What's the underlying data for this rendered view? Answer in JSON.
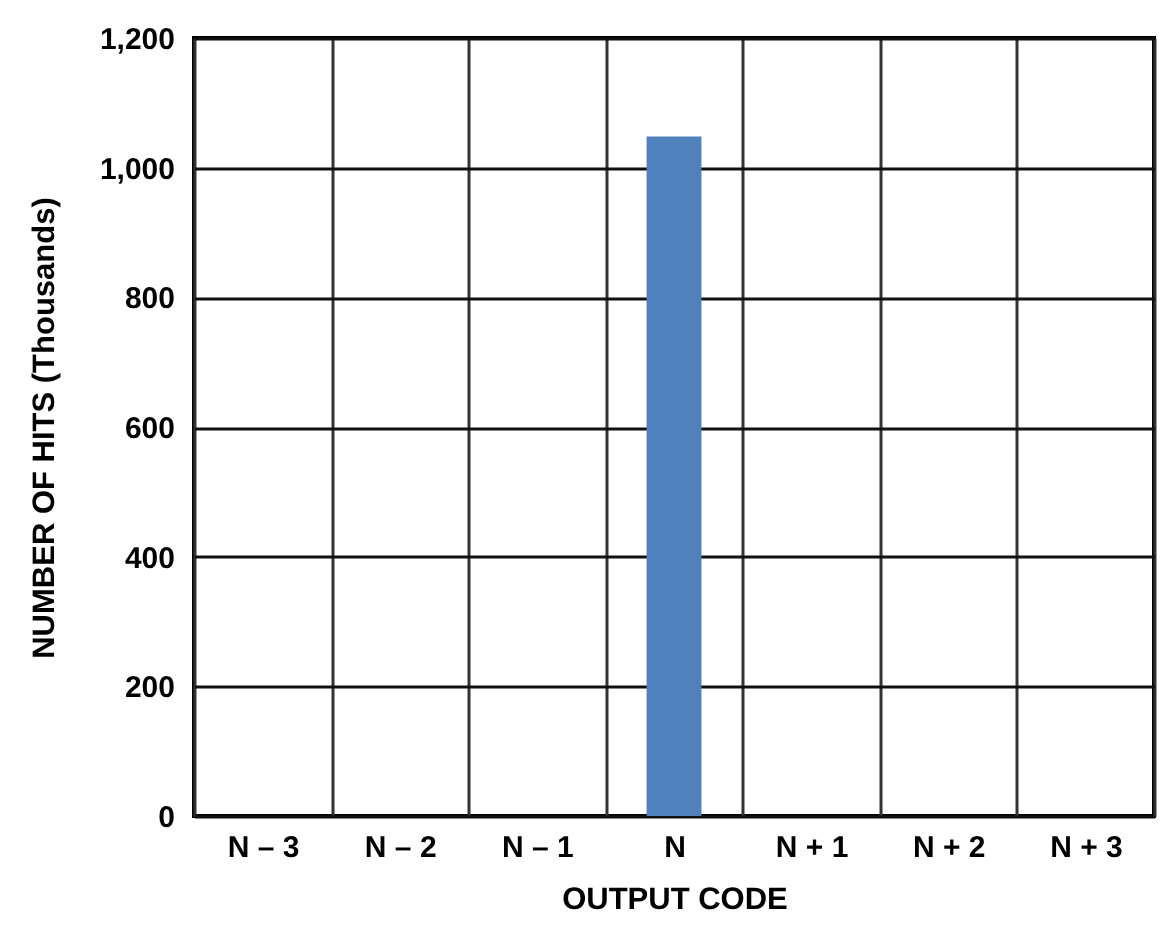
{
  "chart_data": {
    "type": "bar",
    "categories": [
      "N – 3",
      "N – 2",
      "N – 1",
      "N",
      "N + 1",
      "N + 2",
      "N + 3"
    ],
    "values": [
      0,
      0,
      0,
      1048,
      0,
      0,
      0
    ],
    "color": "#4f81bd",
    "xlabel": "OUTPUT CODE",
    "ylabel": "NUMBER OF HITS (Thousands)",
    "ylim": [
      0,
      1200
    ],
    "yticks": [
      0,
      200,
      400,
      600,
      800,
      {
        "value": 1000,
        "label": "1,000"
      },
      {
        "value": 1200,
        "label": "1,200"
      }
    ],
    "grid": true
  }
}
